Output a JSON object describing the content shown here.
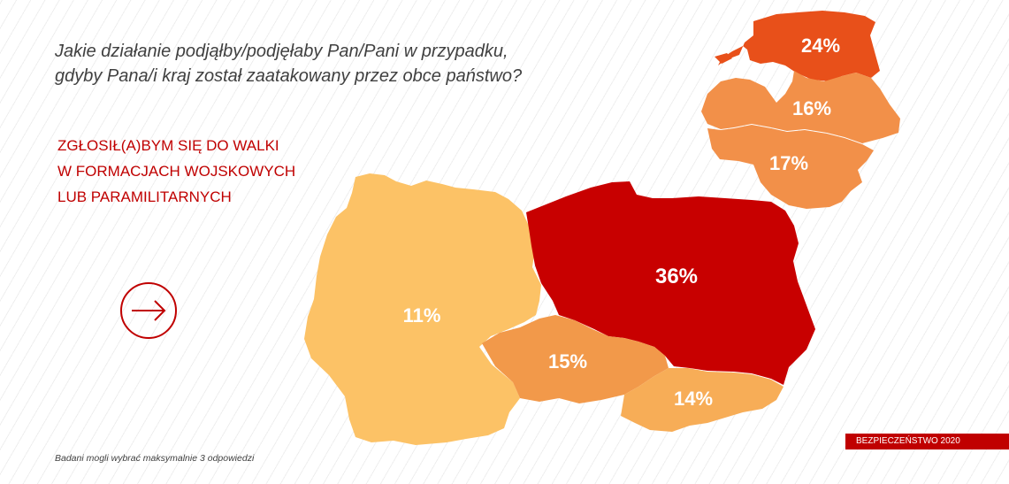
{
  "question": {
    "line1": "Jakie działanie podjąłby/podjęłaby Pan/Pani w przypadku,",
    "line2": "gdyby Pana/i kraj został zaatakowany przez obce państwo?"
  },
  "answer": {
    "line1": "ZGŁOSIŁ(A)BYM SIĘ DO WALKI",
    "line2": "W FORMACJACH WOJSKOWYCH",
    "line3": "LUB PARAMILITARNYCH"
  },
  "arrow_icon": "arrow-right-icon",
  "footnote": "Badani mogli wybrać maksymalnie 3 odpowiedzi",
  "badge": "BEZPIECZEŃSTWO 2020",
  "regions": [
    {
      "id": "estonia",
      "value": "24%",
      "color": "#e8501a"
    },
    {
      "id": "latvia",
      "value": "16%",
      "color": "#f29049"
    },
    {
      "id": "lithuania",
      "value": "17%",
      "color": "#f29049"
    },
    {
      "id": "germany",
      "value": "11%",
      "color": "#fcc266"
    },
    {
      "id": "poland",
      "value": "36%",
      "color": "#c80000"
    },
    {
      "id": "czechia",
      "value": "15%",
      "color": "#f2994a"
    },
    {
      "id": "slovakia",
      "value": "14%",
      "color": "#f7ad57"
    }
  ]
}
